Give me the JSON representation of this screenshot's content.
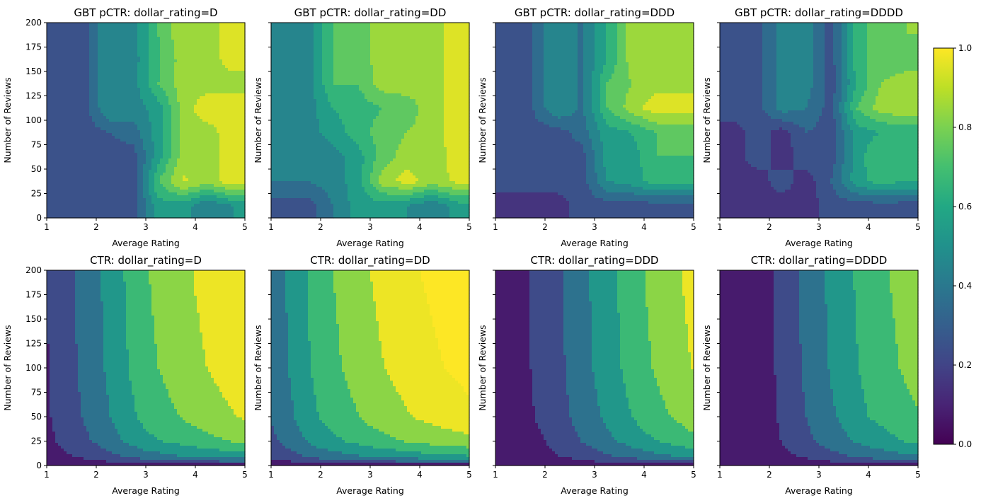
{
  "chart_data": [
    {
      "type": "heatmap",
      "style": "filled-contour",
      "title": "GBT pCTR: dollar_rating=D",
      "xlabel": "Average Rating",
      "ylabel": "Number of Reviews",
      "x_range": [
        1,
        5
      ],
      "y_range": [
        0,
        200
      ],
      "x_ticks": [
        "1",
        "2",
        "3",
        "4",
        "5"
      ],
      "y_ticks": [
        "0",
        "25",
        "50",
        "75",
        "100",
        "125",
        "150",
        "175",
        "200"
      ],
      "show_y_tick_labels": true,
      "levels_step": 0.1,
      "x": [
        1.25,
        1.75,
        2.25,
        2.75,
        3.25,
        3.75,
        4.25,
        4.75
      ],
      "y": [
        12.5,
        37.5,
        62.5,
        87.5,
        112.5,
        137.5,
        162.5,
        187.5
      ],
      "z": [
        [
          0.25,
          0.25,
          0.25,
          0.25,
          0.55,
          0.55,
          0.4,
          0.5
        ],
        [
          0.25,
          0.25,
          0.25,
          0.25,
          0.7,
          0.92,
          0.85,
          0.97
        ],
        [
          0.25,
          0.25,
          0.25,
          0.25,
          0.55,
          0.85,
          0.85,
          0.97
        ],
        [
          0.25,
          0.25,
          0.3,
          0.35,
          0.55,
          0.85,
          0.85,
          0.97
        ],
        [
          0.25,
          0.25,
          0.5,
          0.45,
          0.55,
          0.85,
          0.97,
          0.97
        ],
        [
          0.25,
          0.25,
          0.5,
          0.45,
          0.7,
          0.85,
          0.85,
          0.85
        ],
        [
          0.25,
          0.25,
          0.5,
          0.45,
          0.68,
          0.85,
          0.85,
          0.95
        ],
        [
          0.25,
          0.25,
          0.5,
          0.45,
          0.7,
          0.88,
          0.85,
          0.97
        ]
      ]
    },
    {
      "type": "heatmap",
      "style": "filled-contour",
      "title": "GBT pCTR: dollar_rating=DD",
      "xlabel": "Average Rating",
      "ylabel": "Number of Reviews",
      "x_range": [
        1,
        5
      ],
      "y_range": [
        0,
        200
      ],
      "x_ticks": [
        "1",
        "2",
        "3",
        "4",
        "5"
      ],
      "y_ticks": [
        "0",
        "25",
        "50",
        "75",
        "100",
        "125",
        "150",
        "175",
        "200"
      ],
      "show_y_tick_labels": false,
      "levels_step": 0.1,
      "x": [
        1.25,
        1.75,
        2.25,
        2.75,
        3.25,
        3.75,
        4.25,
        4.75
      ],
      "y": [
        12.5,
        37.5,
        62.5,
        87.5,
        112.5,
        137.5,
        162.5,
        187.5
      ],
      "z": [
        [
          0.25,
          0.25,
          0.4,
          0.55,
          0.55,
          0.5,
          0.4,
          0.55
        ],
        [
          0.4,
          0.4,
          0.45,
          0.55,
          0.85,
          0.95,
          0.85,
          0.92
        ],
        [
          0.4,
          0.4,
          0.45,
          0.55,
          0.75,
          0.85,
          0.8,
          0.97
        ],
        [
          0.45,
          0.45,
          0.55,
          0.65,
          0.75,
          0.8,
          0.85,
          0.97
        ],
        [
          0.45,
          0.45,
          0.6,
          0.65,
          0.7,
          0.75,
          0.85,
          0.97
        ],
        [
          0.45,
          0.45,
          0.7,
          0.7,
          0.85,
          0.85,
          0.85,
          0.95
        ],
        [
          0.45,
          0.45,
          0.7,
          0.75,
          0.85,
          0.85,
          0.85,
          0.95
        ],
        [
          0.45,
          0.45,
          0.7,
          0.75,
          0.85,
          0.85,
          0.85,
          0.95
        ]
      ]
    },
    {
      "type": "heatmap",
      "style": "filled-contour",
      "title": "GBT pCTR: dollar_rating=DDD",
      "xlabel": "Average Rating",
      "ylabel": "Number of Reviews",
      "x_range": [
        1,
        5
      ],
      "y_range": [
        0,
        200
      ],
      "x_ticks": [
        "1",
        "2",
        "3",
        "4",
        "5"
      ],
      "y_ticks": [
        "0",
        "25",
        "50",
        "75",
        "100",
        "125",
        "150",
        "175",
        "200"
      ],
      "show_y_tick_labels": false,
      "levels_step": 0.1,
      "x": [
        1.25,
        1.75,
        2.25,
        2.75,
        3.25,
        3.75,
        4.25,
        4.75
      ],
      "y": [
        12.5,
        37.5,
        62.5,
        87.5,
        112.5,
        137.5,
        162.5,
        187.5
      ],
      "z": [
        [
          0.15,
          0.15,
          0.15,
          0.25,
          0.25,
          0.25,
          0.25,
          0.25
        ],
        [
          0.25,
          0.25,
          0.25,
          0.25,
          0.5,
          0.55,
          0.65,
          0.65
        ],
        [
          0.25,
          0.25,
          0.25,
          0.25,
          0.55,
          0.55,
          0.7,
          0.7
        ],
        [
          0.25,
          0.25,
          0.25,
          0.35,
          0.55,
          0.6,
          0.7,
          0.7
        ],
        [
          0.25,
          0.3,
          0.5,
          0.38,
          0.7,
          0.85,
          0.97,
          0.97
        ],
        [
          0.25,
          0.3,
          0.5,
          0.38,
          0.7,
          0.8,
          0.85,
          0.85
        ],
        [
          0.25,
          0.3,
          0.5,
          0.38,
          0.6,
          0.85,
          0.85,
          0.85
        ],
        [
          0.25,
          0.3,
          0.5,
          0.38,
          0.6,
          0.85,
          0.85,
          0.85
        ]
      ]
    },
    {
      "type": "heatmap",
      "style": "filled-contour",
      "title": "GBT pCTR: dollar_rating=DDDD",
      "xlabel": "Average Rating",
      "ylabel": "Number of Reviews",
      "x_range": [
        1,
        5
      ],
      "y_range": [
        0,
        200
      ],
      "x_ticks": [
        "1",
        "2",
        "3",
        "4",
        "5"
      ],
      "y_ticks": [
        "0",
        "25",
        "50",
        "75",
        "100",
        "125",
        "150",
        "175",
        "200"
      ],
      "show_y_tick_labels": false,
      "levels_step": 0.1,
      "x": [
        1.25,
        1.75,
        2.25,
        2.75,
        3.25,
        3.75,
        4.25,
        4.75
      ],
      "y": [
        12.5,
        37.5,
        62.5,
        87.5,
        112.5,
        137.5,
        162.5,
        187.5
      ],
      "z": [
        [
          0.15,
          0.15,
          0.15,
          0.15,
          0.25,
          0.25,
          0.25,
          0.25
        ],
        [
          0.15,
          0.15,
          0.25,
          0.15,
          0.3,
          0.55,
          0.65,
          0.6
        ],
        [
          0.15,
          0.25,
          0.15,
          0.25,
          0.25,
          0.55,
          0.7,
          0.7
        ],
        [
          0.15,
          0.25,
          0.15,
          0.3,
          0.25,
          0.55,
          0.6,
          0.6
        ],
        [
          0.25,
          0.25,
          0.45,
          0.4,
          0.25,
          0.7,
          0.85,
          0.9
        ],
        [
          0.25,
          0.25,
          0.45,
          0.45,
          0.25,
          0.6,
          0.8,
          0.85
        ],
        [
          0.25,
          0.25,
          0.45,
          0.45,
          0.25,
          0.65,
          0.75,
          0.75
        ],
        [
          0.25,
          0.25,
          0.45,
          0.45,
          0.25,
          0.65,
          0.75,
          0.8
        ]
      ]
    },
    {
      "type": "heatmap",
      "style": "filled-contour",
      "title": "CTR: dollar_rating=D",
      "xlabel": "Average Rating",
      "ylabel": "Number of Reviews",
      "x_range": [
        1,
        5
      ],
      "y_range": [
        0,
        200
      ],
      "x_ticks": [
        "1",
        "2",
        "3",
        "4",
        "5"
      ],
      "y_ticks": [
        "0",
        "25",
        "50",
        "75",
        "100",
        "125",
        "150",
        "175",
        "200"
      ],
      "show_y_tick_labels": true,
      "levels_step": 0.15,
      "x": [
        1,
        2,
        3,
        4,
        5
      ],
      "y": [
        0,
        5,
        10,
        25,
        50,
        100,
        200
      ],
      "z": [
        [
          0,
          0,
          0,
          0,
          0
        ],
        [
          0.05,
          0.15,
          0.26,
          0.32,
          0.37
        ],
        [
          0.08,
          0.22,
          0.39,
          0.48,
          0.55
        ],
        [
          0.11,
          0.32,
          0.56,
          0.68,
          0.79
        ],
        [
          0.13,
          0.37,
          0.65,
          0.8,
          0.92
        ],
        [
          0.14,
          0.4,
          0.71,
          0.87,
          1.0
        ],
        [
          0.15,
          0.42,
          0.74,
          0.91,
          1.05
        ]
      ]
    },
    {
      "type": "heatmap",
      "style": "filled-contour",
      "title": "CTR: dollar_rating=DD",
      "xlabel": "Average Rating",
      "ylabel": "Number of Reviews",
      "x_range": [
        1,
        5
      ],
      "y_range": [
        0,
        200
      ],
      "x_ticks": [
        "1",
        "2",
        "3",
        "4",
        "5"
      ],
      "y_ticks": [
        "0",
        "25",
        "50",
        "75",
        "100",
        "125",
        "150",
        "175",
        "200"
      ],
      "show_y_tick_labels": false,
      "levels_step": 0.15,
      "x": [
        1,
        2,
        3,
        4,
        5
      ],
      "y": [
        0,
        5,
        10,
        25,
        50,
        100,
        200
      ],
      "z": [
        [
          0,
          0,
          0,
          0,
          0
        ],
        [
          0.12,
          0.25,
          0.32,
          0.37,
          0.4
        ],
        [
          0.18,
          0.37,
          0.47,
          0.55,
          0.6
        ],
        [
          0.26,
          0.53,
          0.68,
          0.79,
          0.86
        ],
        [
          0.31,
          0.61,
          0.79,
          0.92,
          1.01
        ],
        [
          0.33,
          0.67,
          0.86,
          1.0,
          1.1
        ],
        [
          0.35,
          0.7,
          0.9,
          1.05,
          1.15
        ]
      ]
    },
    {
      "type": "heatmap",
      "style": "filled-contour",
      "title": "CTR: dollar_rating=DDD",
      "xlabel": "Average Rating",
      "ylabel": "Number of Reviews",
      "x_range": [
        1,
        5
      ],
      "y_range": [
        0,
        200
      ],
      "x_ticks": [
        "1",
        "2",
        "3",
        "4",
        "5"
      ],
      "y_ticks": [
        "0",
        "25",
        "50",
        "75",
        "100",
        "125",
        "150",
        "175",
        "200"
      ],
      "show_y_tick_labels": false,
      "levels_step": 0.15,
      "x": [
        1,
        2,
        3,
        4,
        5
      ],
      "y": [
        0,
        5,
        10,
        25,
        50,
        100,
        200
      ],
      "z": [
        [
          0,
          0,
          0,
          0,
          0
        ],
        [
          0.02,
          0.07,
          0.17,
          0.26,
          0.33
        ],
        [
          0.03,
          0.11,
          0.25,
          0.39,
          0.5
        ],
        [
          0.04,
          0.15,
          0.36,
          0.56,
          0.71
        ],
        [
          0.04,
          0.18,
          0.42,
          0.66,
          0.83
        ],
        [
          0.05,
          0.19,
          0.46,
          0.72,
          0.91
        ],
        [
          0.05,
          0.2,
          0.48,
          0.75,
          0.95
        ]
      ]
    },
    {
      "type": "heatmap",
      "style": "filled-contour",
      "title": "CTR: dollar_rating=DDDD",
      "xlabel": "Average Rating",
      "ylabel": "Number of Reviews",
      "x_range": [
        1,
        5
      ],
      "y_range": [
        0,
        200
      ],
      "x_ticks": [
        "1",
        "2",
        "3",
        "4",
        "5"
      ],
      "y_ticks": [
        "0",
        "25",
        "50",
        "75",
        "100",
        "125",
        "150",
        "175",
        "200"
      ],
      "show_y_tick_labels": false,
      "levels_step": 0.15,
      "x": [
        1,
        2,
        3,
        4,
        5
      ],
      "y": [
        0,
        5,
        10,
        25,
        50,
        100,
        200
      ],
      "z": [
        [
          0,
          0,
          0,
          0,
          0
        ],
        [
          0.01,
          0.05,
          0.15,
          0.24,
          0.3
        ],
        [
          0.02,
          0.07,
          0.22,
          0.36,
          0.45
        ],
        [
          0.02,
          0.1,
          0.32,
          0.51,
          0.64
        ],
        [
          0.03,
          0.11,
          0.37,
          0.6,
          0.74
        ],
        [
          0.03,
          0.12,
          0.4,
          0.65,
          0.81
        ],
        [
          0.03,
          0.13,
          0.42,
          0.68,
          0.85
        ]
      ]
    }
  ],
  "colorbar": {
    "colormap": "viridis",
    "range": [
      0,
      1
    ],
    "ticks": [
      "0.0",
      "0.2",
      "0.4",
      "0.6",
      "0.8",
      "1.0"
    ]
  }
}
